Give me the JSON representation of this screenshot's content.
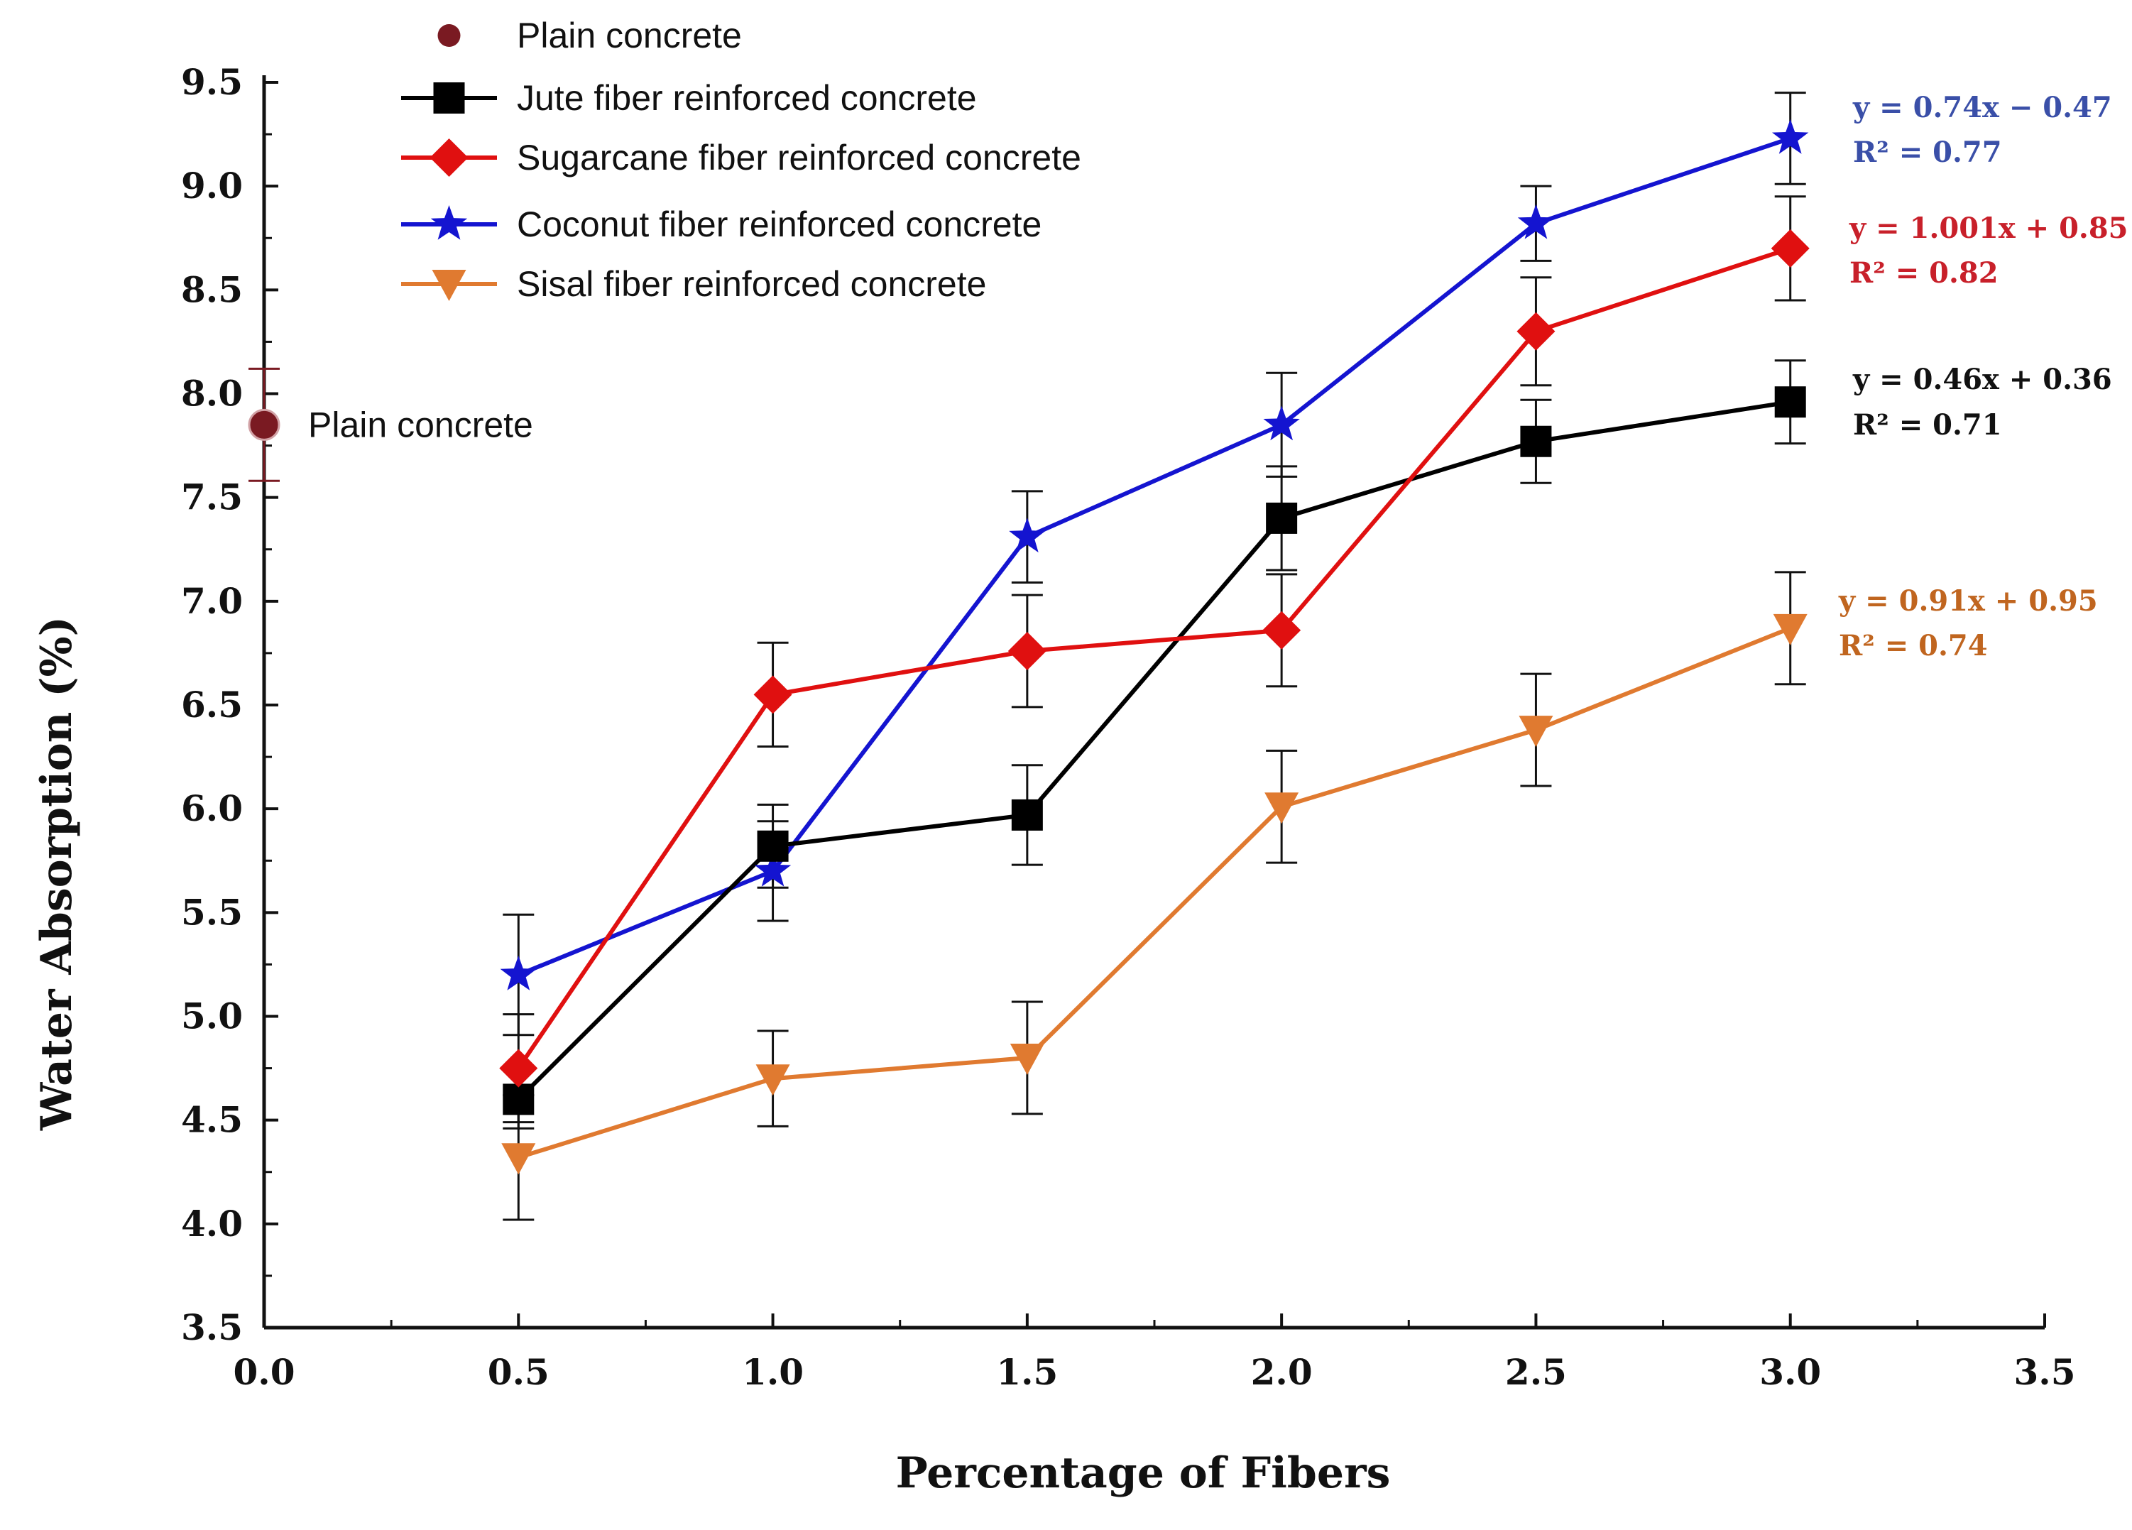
{
  "chart_data": {
    "type": "line",
    "xlabel": "Percentage of Fibers",
    "ylabel": "Water Absorption (%)",
    "xlim": [
      0.0,
      3.5
    ],
    "ylim": [
      3.5,
      9.5
    ],
    "xticks": [
      "0.0",
      "0.5",
      "1.0",
      "1.5",
      "2.0",
      "2.5",
      "3.0",
      "3.5"
    ],
    "yticks": [
      "3.5",
      "4.0",
      "4.5",
      "5.0",
      "5.5",
      "6.0",
      "6.5",
      "7.0",
      "7.5",
      "8.0",
      "8.5",
      "9.0",
      "9.5"
    ],
    "plain": {
      "name": "Plain concrete",
      "annotation": "Plain concrete",
      "x": 0.0,
      "y": 7.85,
      "err": 0.27,
      "color": "#7a1a22"
    },
    "series": [
      {
        "name": "Jute fiber reinforced concrete",
        "color": "#000000",
        "marker": "square",
        "x": [
          0.5,
          1.0,
          1.5,
          2.0,
          2.5,
          3.0
        ],
        "y": [
          4.6,
          5.82,
          5.97,
          7.4,
          7.77,
          7.96
        ],
        "err": [
          0.14,
          0.2,
          0.24,
          0.25,
          0.2,
          0.2
        ],
        "eq": "y = 0.46x + 0.36",
        "r2": "R² = 0.71"
      },
      {
        "name": "Sugarcane fiber reinforced concrete",
        "color": "#e01010",
        "marker": "diamond",
        "x": [
          0.5,
          1.0,
          1.5,
          2.0,
          2.5,
          3.0
        ],
        "y": [
          4.75,
          6.55,
          6.76,
          6.86,
          8.3,
          8.7
        ],
        "err": [
          0.26,
          0.25,
          0.27,
          0.27,
          0.26,
          0.25
        ],
        "eq": "y = 1.001x + 0.85",
        "r2": "R² = 0.82"
      },
      {
        "name": "Coconut fiber reinforced concrete",
        "color": "#1414d0",
        "marker": "star",
        "x": [
          0.5,
          1.0,
          1.5,
          2.0,
          2.5,
          3.0
        ],
        "y": [
          5.2,
          5.7,
          7.31,
          7.85,
          8.82,
          9.23
        ],
        "err": [
          0.29,
          0.24,
          0.22,
          0.25,
          0.18,
          0.22
        ],
        "eq": "y = 0.74x − 0.47",
        "r2": "R² = 0.77"
      },
      {
        "name": "Sisal fiber reinforced concrete",
        "color": "#e07a30",
        "marker": "triangle-down",
        "x": [
          0.5,
          1.0,
          1.5,
          2.0,
          2.5,
          3.0
        ],
        "y": [
          4.32,
          4.7,
          4.8,
          6.01,
          6.38,
          6.87
        ],
        "err": [
          0.3,
          0.23,
          0.27,
          0.27,
          0.27,
          0.27
        ],
        "eq": "y = 0.91x + 0.95",
        "r2": "R² = 0.74"
      }
    ]
  },
  "colors": {
    "plain": "#7a1a22",
    "jute": "#000000",
    "sugarcane": "#e01010",
    "coconut": "#1414d0",
    "sisal": "#e07a30",
    "eq_coconut": "#3a4fa8",
    "eq_sugarcane": "#c8202a",
    "eq_jute": "#111111",
    "eq_sisal": "#c0651f"
  }
}
